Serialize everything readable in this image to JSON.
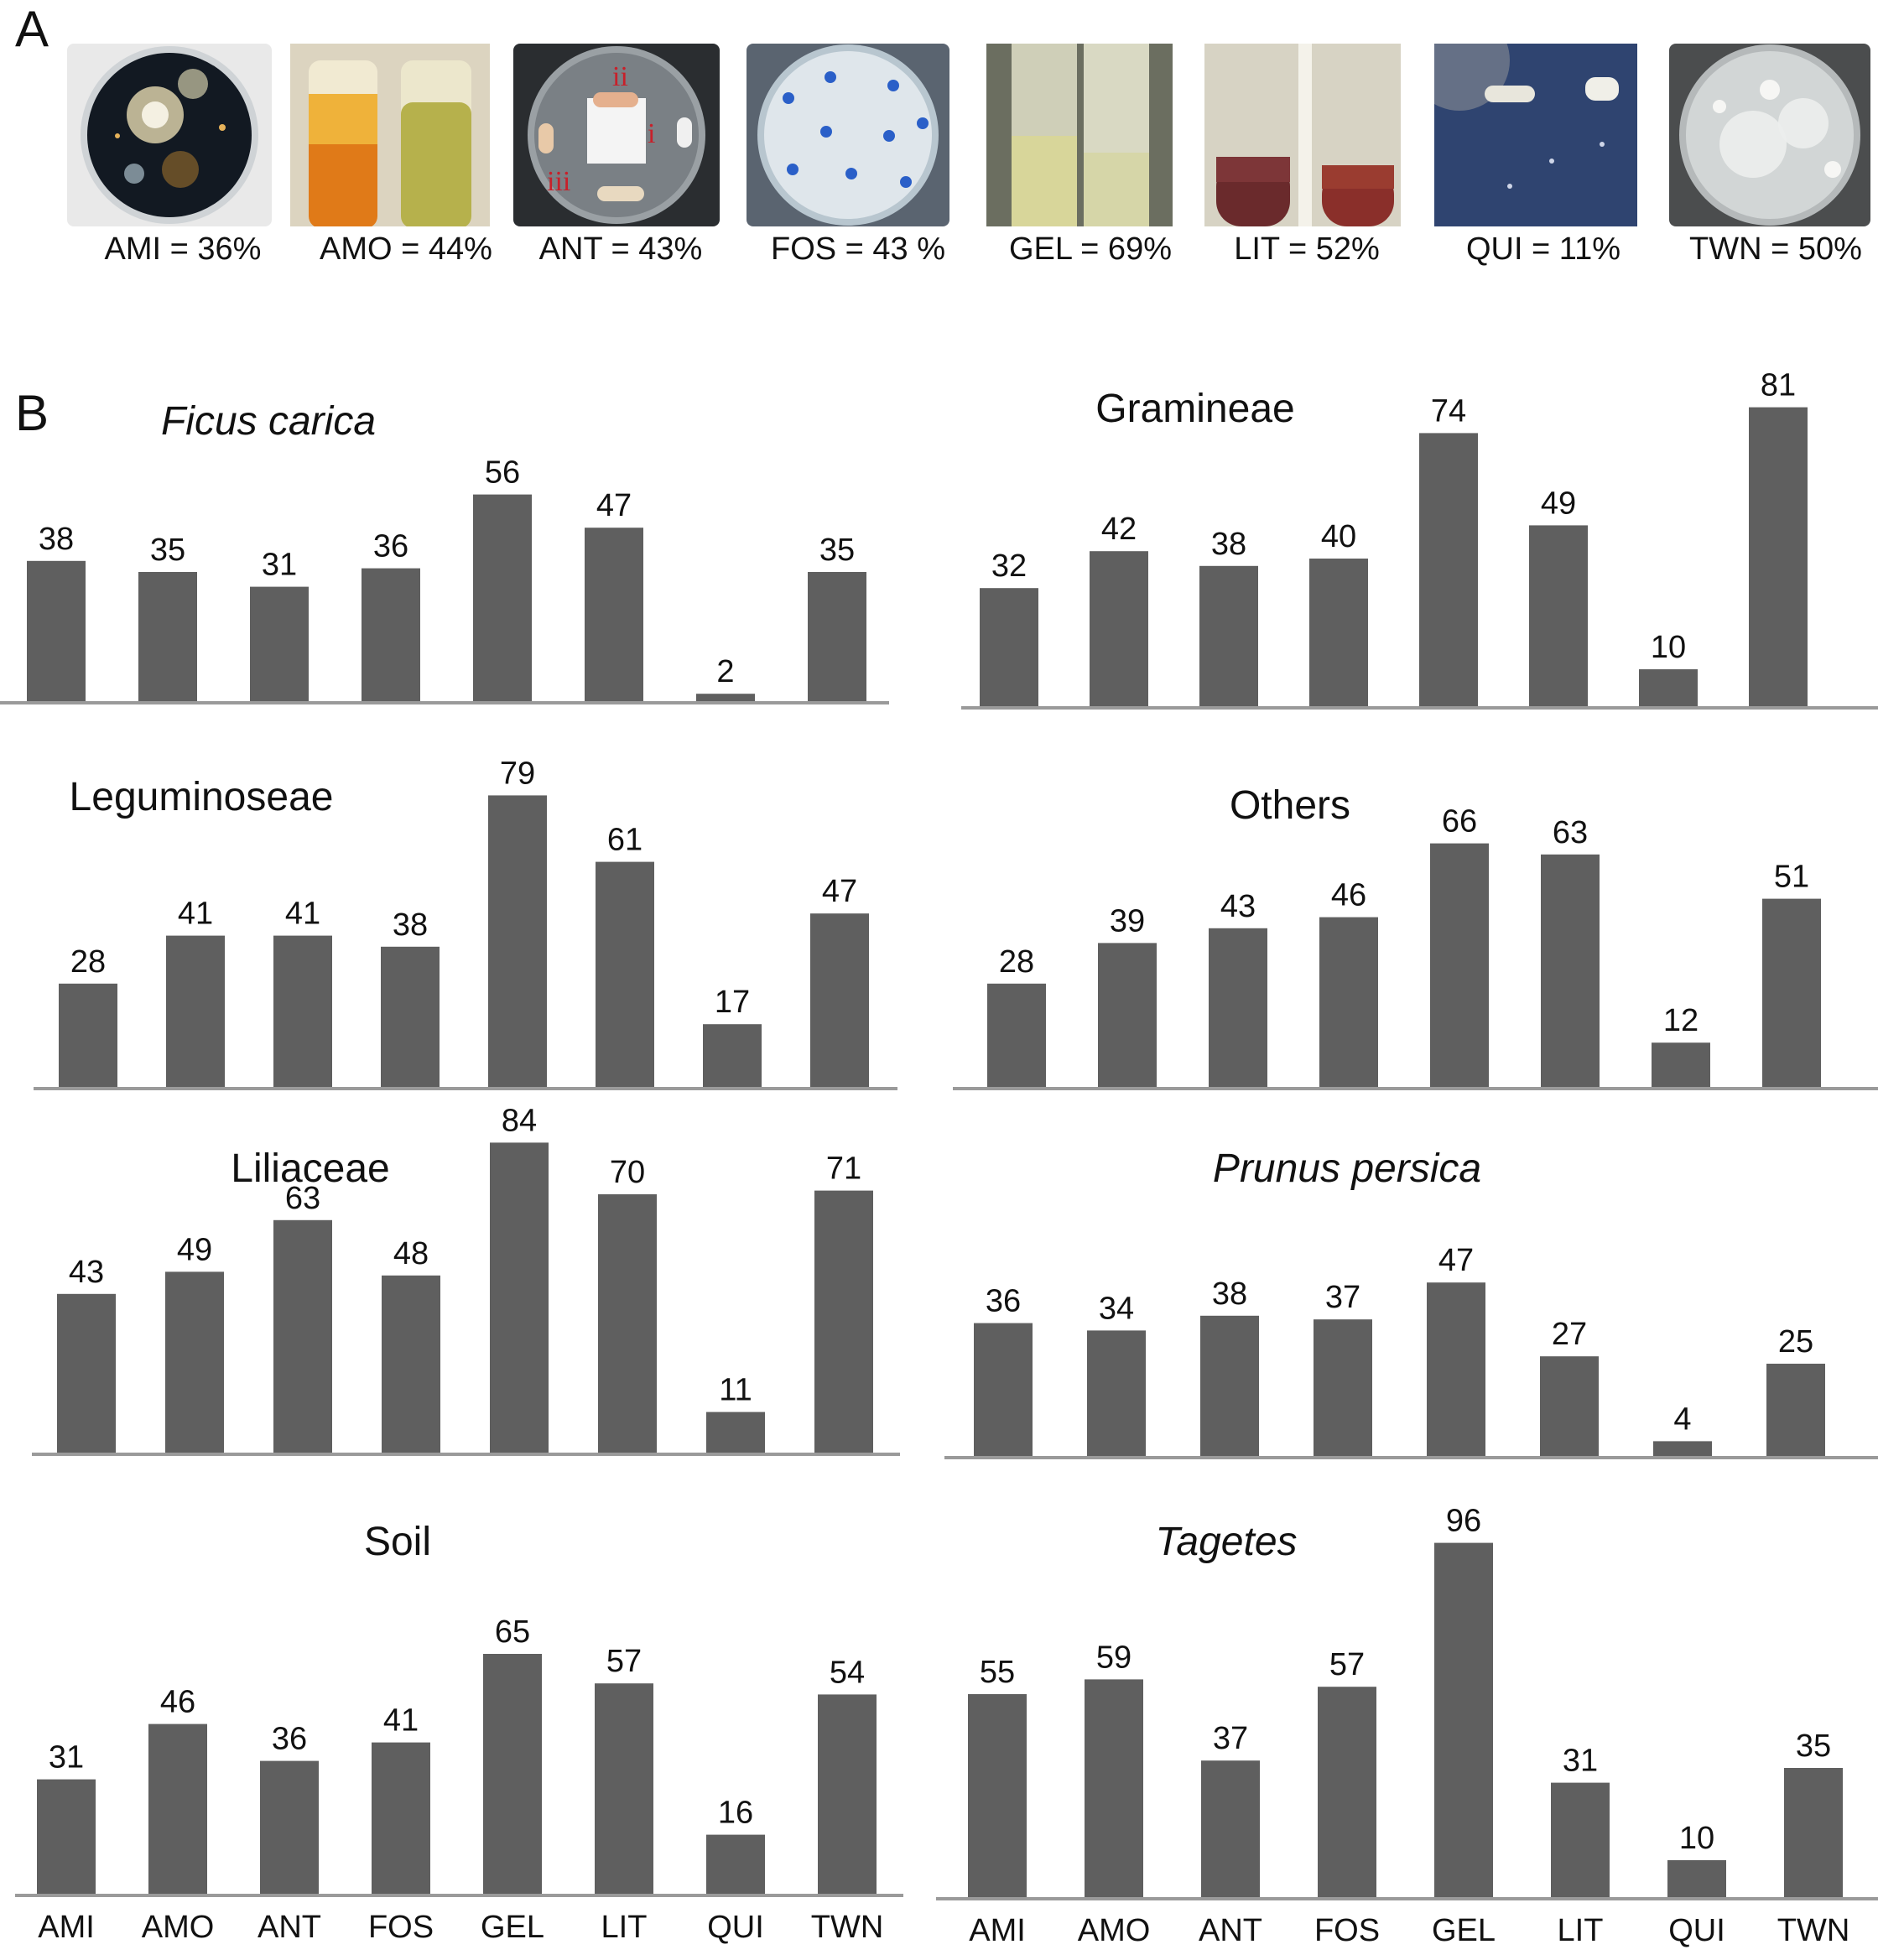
{
  "panel_a": {
    "letter": "A",
    "tests": [
      {
        "label": "AMI = 36%",
        "kind": "dish-dark"
      },
      {
        "label": "AMO = 44%",
        "kind": "tubes-orange"
      },
      {
        "label": "ANT = 43%",
        "kind": "dish-antagonism",
        "marks": [
          "ii",
          "i",
          "iii"
        ]
      },
      {
        "label": "FOS = 43 %",
        "kind": "dish-blue-dots"
      },
      {
        "label": "GEL =  69%",
        "kind": "tubes-yellow"
      },
      {
        "label": "LIT = 52%",
        "kind": "tubes-red"
      },
      {
        "label": "QUI = 11%",
        "kind": "plate-blue"
      },
      {
        "label": "TWN = 50%",
        "kind": "dish-cloudy"
      }
    ]
  },
  "panel_b": {
    "letter": "B",
    "categories": [
      "AMI",
      "AMO",
      "ANT",
      "FOS",
      "GEL",
      "LIT",
      "QUI",
      "TWN"
    ]
  },
  "chart_data": [
    {
      "type": "bar",
      "title": "Ficus carica",
      "italic": true,
      "categories": [
        "AMI",
        "AMO",
        "ANT",
        "FOS",
        "GEL",
        "LIT",
        "QUI",
        "TWN"
      ],
      "values": [
        38,
        35,
        31,
        36,
        56,
        47,
        2,
        35
      ]
    },
    {
      "type": "bar",
      "title": "Gramineae",
      "italic": false,
      "categories": [
        "AMI",
        "AMO",
        "ANT",
        "FOS",
        "GEL",
        "LIT",
        "QUI",
        "TWN"
      ],
      "values": [
        32,
        42,
        38,
        40,
        74,
        49,
        10,
        81
      ]
    },
    {
      "type": "bar",
      "title": "Leguminoseae",
      "italic": false,
      "categories": [
        "AMI",
        "AMO",
        "ANT",
        "FOS",
        "GEL",
        "LIT",
        "QUI",
        "TWN"
      ],
      "values": [
        28,
        41,
        41,
        38,
        79,
        61,
        17,
        47
      ]
    },
    {
      "type": "bar",
      "title": "Others",
      "italic": false,
      "categories": [
        "AMI",
        "AMO",
        "ANT",
        "FOS",
        "GEL",
        "LIT",
        "QUI",
        "TWN"
      ],
      "values": [
        28,
        39,
        43,
        46,
        66,
        63,
        12,
        51
      ]
    },
    {
      "type": "bar",
      "title": "Liliaceae",
      "italic": false,
      "categories": [
        "AMI",
        "AMO",
        "ANT",
        "FOS",
        "GEL",
        "LIT",
        "QUI",
        "TWN"
      ],
      "values": [
        43,
        49,
        63,
        48,
        84,
        70,
        11,
        71
      ]
    },
    {
      "type": "bar",
      "title": "Prunus persica",
      "italic": true,
      "categories": [
        "AMI",
        "AMO",
        "ANT",
        "FOS",
        "GEL",
        "LIT",
        "QUI",
        "TWN"
      ],
      "values": [
        36,
        34,
        38,
        37,
        47,
        27,
        4,
        25
      ]
    },
    {
      "type": "bar",
      "title": "Soil",
      "italic": false,
      "categories": [
        "AMI",
        "AMO",
        "ANT",
        "FOS",
        "GEL",
        "LIT",
        "QUI",
        "TWN"
      ],
      "values": [
        31,
        46,
        36,
        41,
        65,
        57,
        16,
        54
      ]
    },
    {
      "type": "bar",
      "title": "Tagetes",
      "italic": true,
      "categories": [
        "AMI",
        "AMO",
        "ANT",
        "FOS",
        "GEL",
        "LIT",
        "QUI",
        "TWN"
      ],
      "values": [
        55,
        59,
        37,
        57,
        96,
        31,
        10,
        35
      ]
    }
  ]
}
